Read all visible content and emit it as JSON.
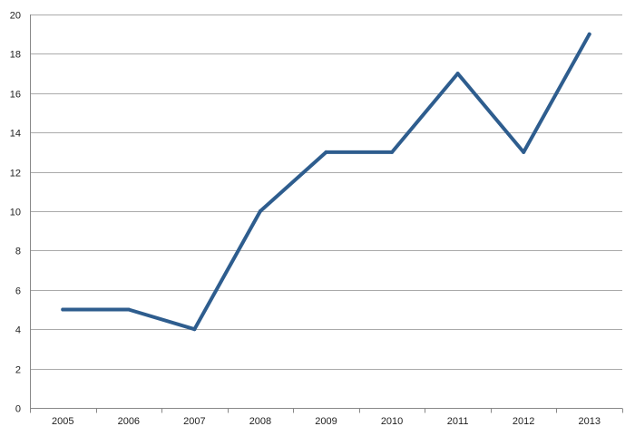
{
  "chart_data": {
    "type": "line",
    "title": "",
    "xlabel": "",
    "ylabel": "",
    "categories": [
      "2005",
      "2006",
      "2007",
      "2008",
      "2009",
      "2010",
      "2011",
      "2012",
      "2013"
    ],
    "series": [
      {
        "values": [
          5,
          5,
          4,
          10,
          13,
          13,
          17,
          13,
          19
        ],
        "color": "#2e5d8e"
      }
    ],
    "ylim": [
      0,
      20
    ],
    "yticks": [
      0,
      2,
      4,
      6,
      8,
      10,
      12,
      14,
      16,
      18,
      20
    ],
    "ytick_labels": [
      "0",
      "2",
      "4",
      "6",
      "8",
      "10",
      "12",
      "14",
      "16",
      "18",
      "20"
    ],
    "grid": "horizontal",
    "legend": "none"
  }
}
